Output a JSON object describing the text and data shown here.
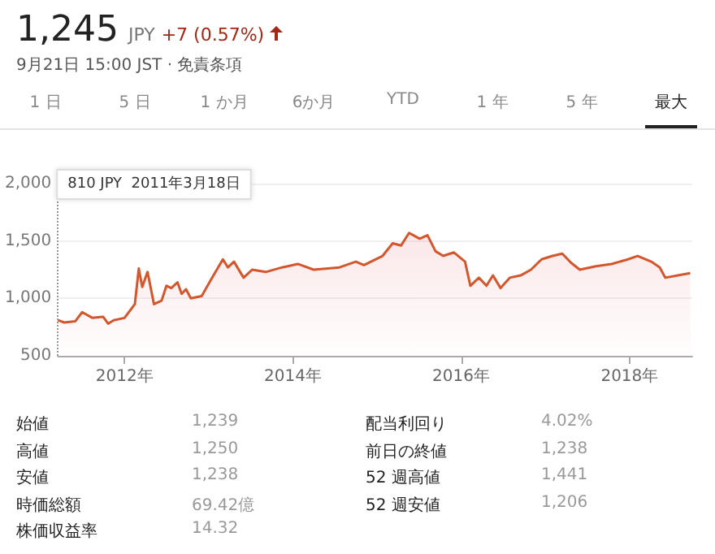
{
  "chart_data": [
    {
      "type": "other",
      "title": "1,245",
      "annotations": [
        "JPY",
        "+7 (0.57%)",
        "9月21日 15:00 JST · 免責条項",
        "1 日",
        "5 日",
        "1 か月",
        "6か月",
        "YTD",
        "1 年",
        "5 年",
        "最大"
      ]
    },
    {
      "type": "area",
      "x": [
        "2011-03-18",
        "2011-04-15",
        "2011-06-01",
        "2011-07-01",
        "2011-08-15",
        "2011-09-30",
        "2011-10-22",
        "2011-11-15",
        "2012-01-01",
        "2012-02-15",
        "2012-03-03",
        "2012-03-18",
        "2012-04-10",
        "2012-05-08",
        "2012-06-10",
        "2012-07-01",
        "2012-07-22",
        "2012-08-18",
        "2012-09-05",
        "2012-09-24",
        "2012-10-15",
        "2012-12-01",
        "2013-01-15",
        "2013-03-03",
        "2013-03-25",
        "2013-04-20",
        "2013-06-01",
        "2013-07-08",
        "2013-09-05",
        "2013-11-15",
        "2014-01-22",
        "2014-04-01",
        "2014-07-22",
        "2014-10-01",
        "2014-11-05",
        "2015-01-25",
        "2015-03-10",
        "2015-04-15",
        "2015-05-20",
        "2015-07-05",
        "2015-08-08",
        "2015-09-12",
        "2015-10-15",
        "2015-12-01",
        "2016-01-18",
        "2016-02-10",
        "2016-03-18",
        "2016-04-20",
        "2016-05-18",
        "2016-06-20",
        "2016-07-30",
        "2016-09-15",
        "2016-10-30",
        "2016-12-15",
        "2017-02-01",
        "2017-03-15",
        "2017-04-22",
        "2017-05-30",
        "2017-08-08",
        "2017-10-15",
        "2017-12-25",
        "2018-02-05",
        "2018-04-05",
        "2018-05-12",
        "2018-06-05",
        "2018-07-30",
        "2018-09-21"
      ],
      "series": [
        {
          "color": "#d4562c",
          "values": [
            810,
            790,
            800,
            880,
            830,
            840,
            780,
            810,
            830,
            950,
            1260,
            1100,
            1230,
            950,
            980,
            1110,
            1090,
            1140,
            1040,
            1080,
            1000,
            1020,
            1180,
            1340,
            1270,
            1320,
            1180,
            1250,
            1230,
            1270,
            1300,
            1250,
            1270,
            1320,
            1290,
            1370,
            1480,
            1460,
            1570,
            1520,
            1550,
            1410,
            1370,
            1400,
            1320,
            1110,
            1180,
            1110,
            1200,
            1090,
            1180,
            1200,
            1250,
            1340,
            1370,
            1390,
            1310,
            1250,
            1280,
            1300,
            1340,
            1370,
            1320,
            1270,
            1180,
            1200,
            1220
          ]
        }
      ],
      "xlim": [
        "2011-03-18",
        "2018-09-30"
      ],
      "xticks": [
        {
          "value": "2012-01-01",
          "label": "2012年"
        },
        {
          "value": "2014-01-01",
          "label": "2014年"
        },
        {
          "value": "2016-01-01",
          "label": "2016年"
        },
        {
          "value": "2018-01-01",
          "label": "2018年"
        }
      ],
      "ylim": [
        500,
        2000
      ],
      "yticks": [
        500,
        {
          "value": 1000,
          "label": "1,000"
        },
        {
          "value": 1500,
          "label": "1,500"
        },
        {
          "value": 2000,
          "label": "2,000"
        }
      ],
      "grid": "y",
      "ref_lines": [
        {
          "axis": "x",
          "value": "2011-03-18",
          "label": "810 JPY  2011年3月18日",
          "line_style": "dotted",
          "color": "#999999"
        }
      ]
    },
    {
      "type": "other",
      "annotations": [
        "始値",
        "1,239",
        "高値",
        "1,250",
        "安値",
        "1,238",
        "時価総額",
        "69.42億",
        "株価収益率",
        "14.32",
        "配当利回り",
        "4.02%",
        "前日の終値",
        "1,238",
        "52 週高値",
        "1,441",
        "52 週安値",
        "1,206"
      ]
    }
  ]
}
